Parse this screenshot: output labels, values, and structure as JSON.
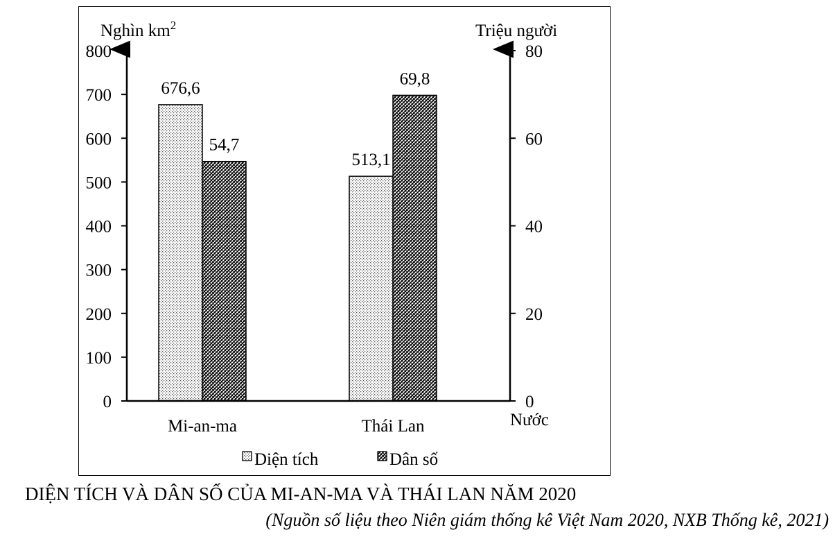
{
  "chart_data": {
    "type": "bar",
    "categories": [
      "Mi-an-ma",
      "Thái Lan"
    ],
    "series": [
      {
        "name": "Diện tích",
        "axis": "left",
        "values": [
          676.6,
          513.1
        ],
        "labels": [
          "676,6",
          "513,1"
        ],
        "pattern": "dotted"
      },
      {
        "name": "Dân số",
        "axis": "right",
        "values": [
          54.7,
          69.8
        ],
        "labels": [
          "54,7",
          "69,8"
        ],
        "pattern": "cross-hatch"
      }
    ],
    "left_axis": {
      "label_main": "Nghìn km",
      "label_sup": "2",
      "range": [
        0,
        800
      ],
      "ticks": [
        0,
        100,
        200,
        300,
        400,
        500,
        600,
        700,
        800
      ]
    },
    "right_axis": {
      "label": "Triệu người",
      "range": [
        0,
        80
      ],
      "ticks": [
        0,
        20,
        40,
        60,
        80
      ]
    },
    "x_axis_label": "Nước",
    "legend_position": "bottom",
    "grid": false
  },
  "caption": {
    "title": "DIỆN TÍCH VÀ DÂN SỐ CỦA MI-AN-MA VÀ THÁI LAN NĂM 2020",
    "source": "(Nguồn số liệu theo Niên giám thống kê Việt Nam 2020, NXB Thống kê, 2021)"
  }
}
